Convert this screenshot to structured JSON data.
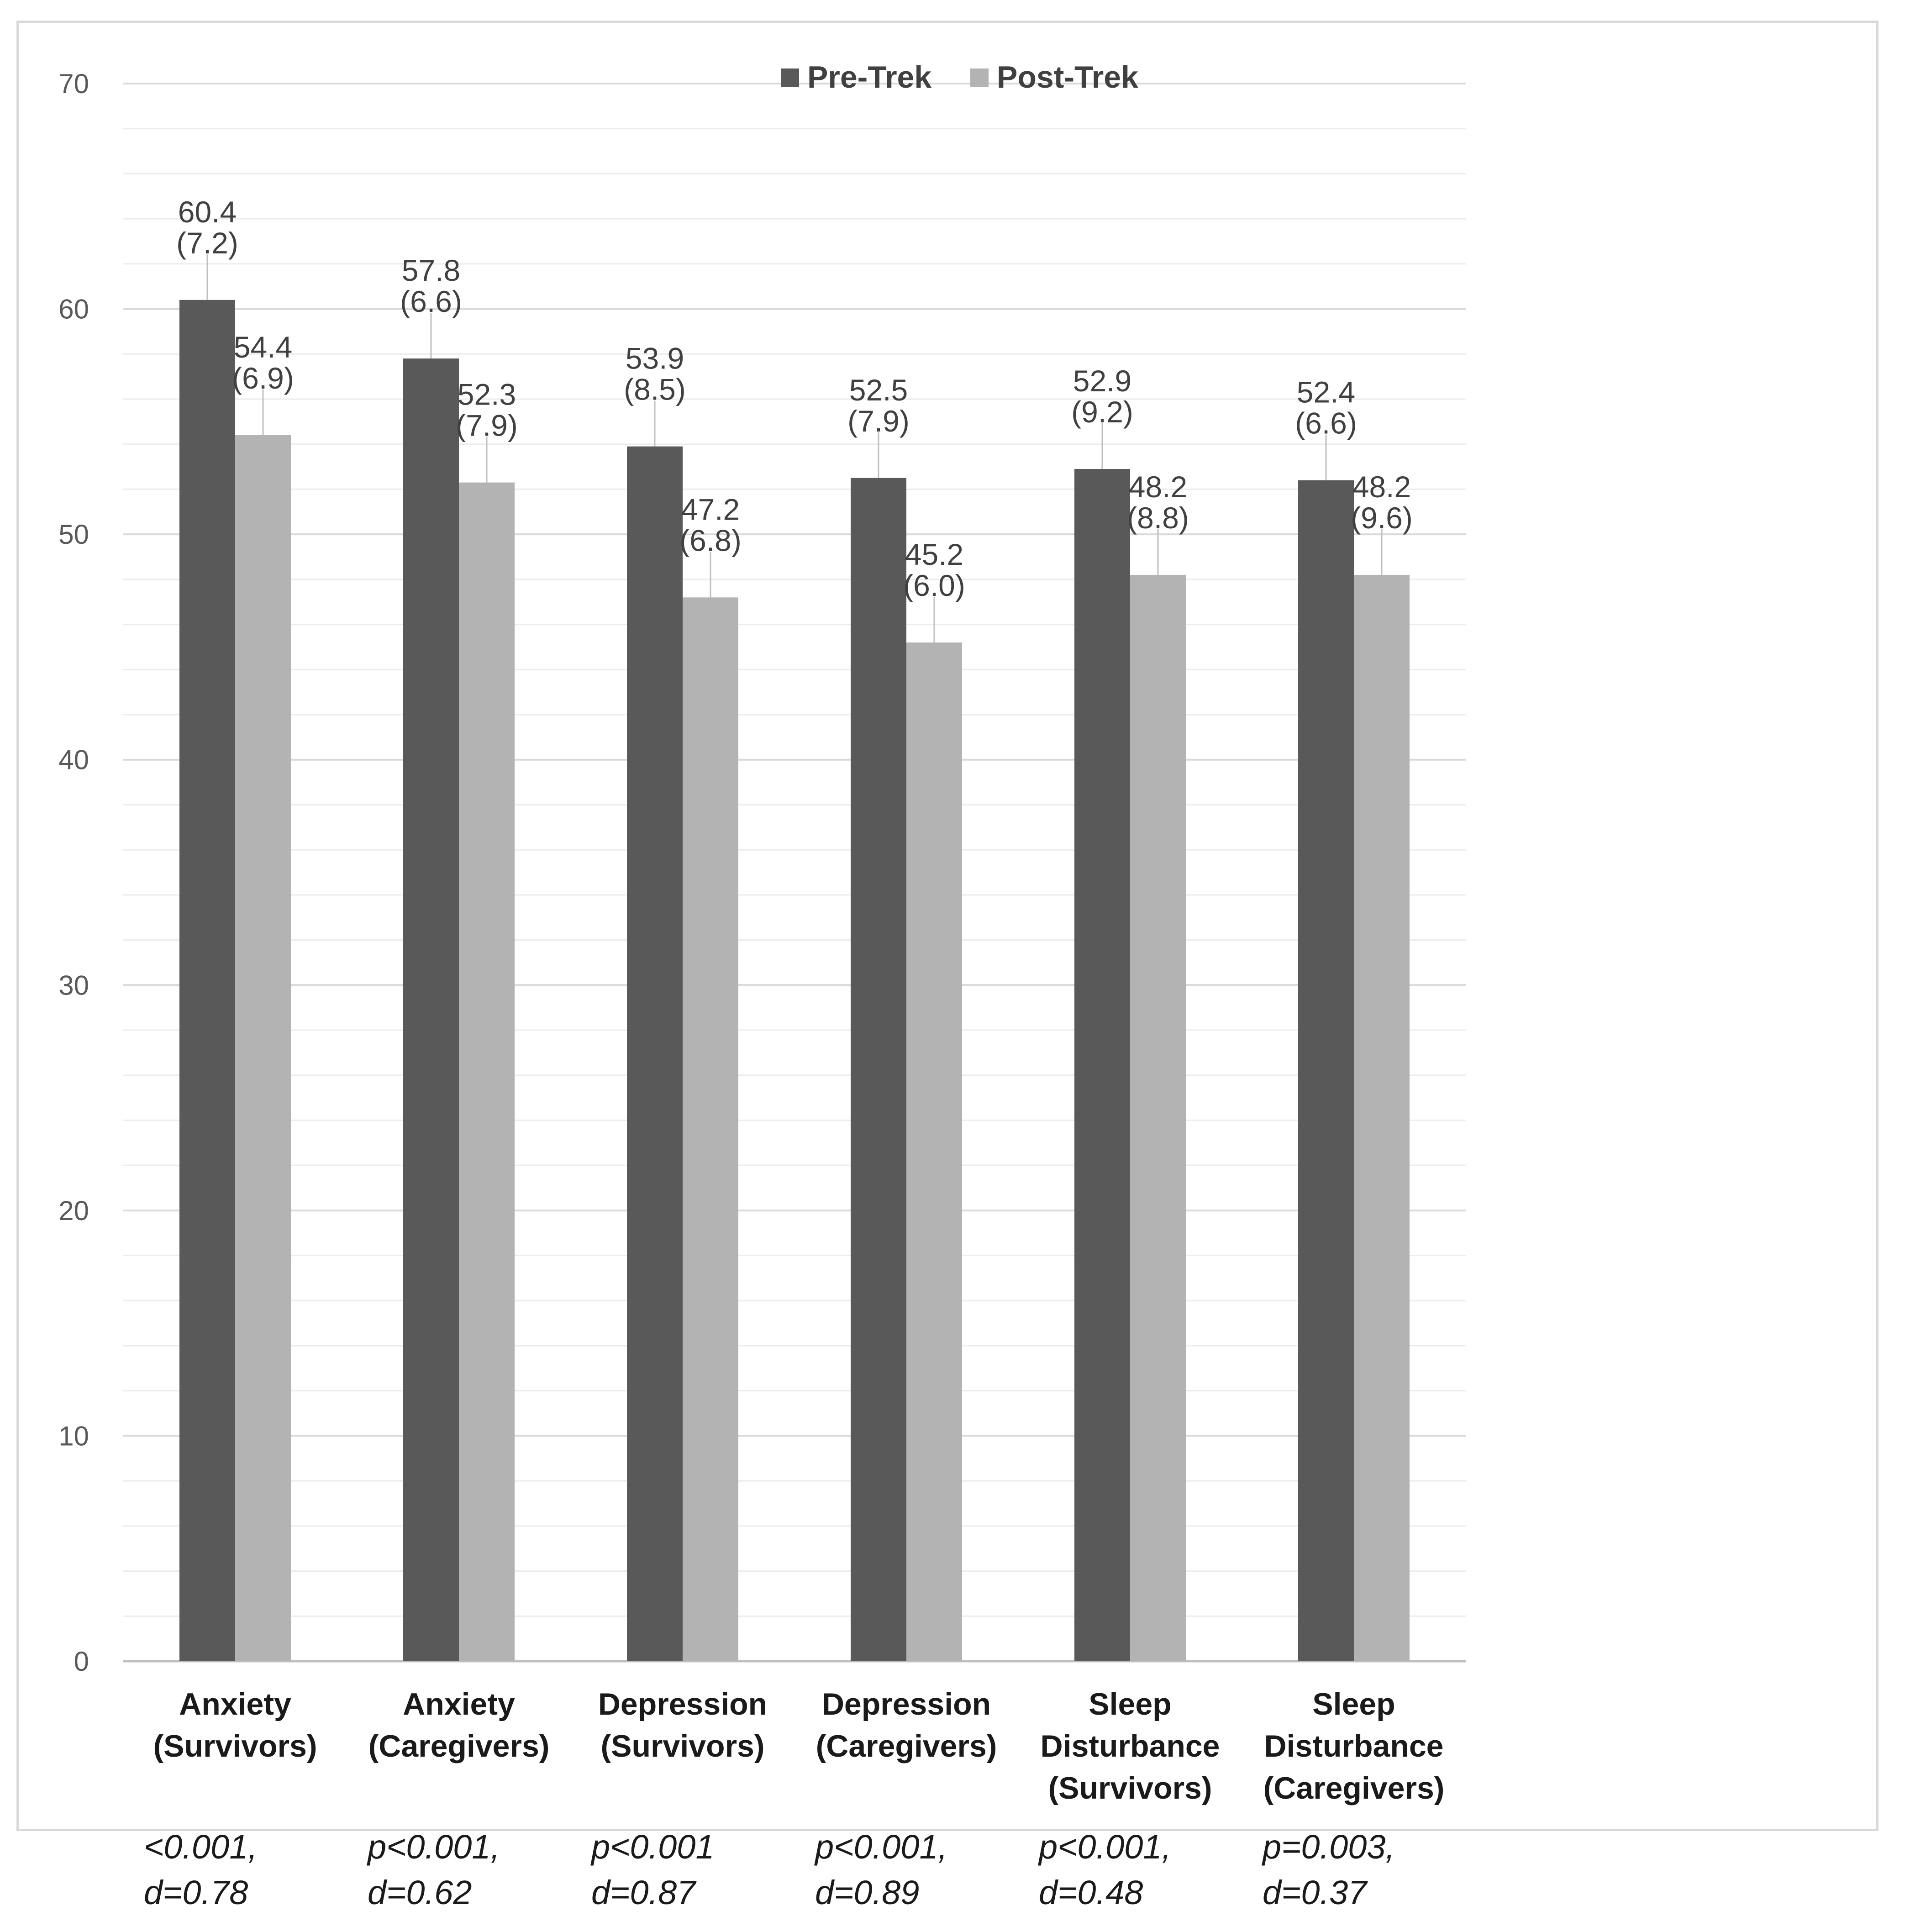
{
  "chart_data": {
    "type": "bar",
    "categories": [
      [
        "Anxiety",
        "(Survivors)"
      ],
      [
        "Anxiety",
        "(Caregivers)"
      ],
      [
        "Depression",
        "(Survivors)"
      ],
      [
        "Depression",
        "(Caregivers)"
      ],
      [
        "Sleep",
        "Disturbance",
        "(Survivors)"
      ],
      [
        "Sleep",
        "Disturbance",
        "(Caregivers)"
      ]
    ],
    "series": [
      {
        "name": "Pre-Trek",
        "color": "#595959",
        "values": [
          60.4,
          57.8,
          53.9,
          52.5,
          52.9,
          52.4
        ],
        "sd_labels": [
          "(7.2)",
          "(6.6)",
          "(8.5)",
          "(7.9)",
          "(9.2)",
          "(6.6)"
        ]
      },
      {
        "name": "Post-Trek",
        "color": "#b3b3b3",
        "values": [
          54.4,
          52.3,
          47.2,
          45.2,
          48.2,
          48.2
        ],
        "sd_labels": [
          "(6.9)",
          "(7.9)",
          "(6.8)",
          "(6.0)",
          "(8.8)",
          "(9.6)"
        ]
      }
    ],
    "ylim": [
      0,
      70
    ],
    "yticks": [
      0,
      10,
      20,
      30,
      40,
      50,
      60,
      70
    ],
    "minor_step": 2,
    "grid": true,
    "legend": "top-center",
    "title": "",
    "xlabel": "",
    "ylabel": "",
    "annotations": [
      [
        "<0.001,",
        "d=0.78"
      ],
      [
        "p<0.001,",
        "d=0.62"
      ],
      [
        "p<0.001",
        "d=0.87"
      ],
      [
        "p<0.001,",
        "d=0.89"
      ],
      [
        "p<0.001,",
        "d=0.48"
      ],
      [
        "p=0.003,",
        "d=0.37"
      ]
    ]
  }
}
